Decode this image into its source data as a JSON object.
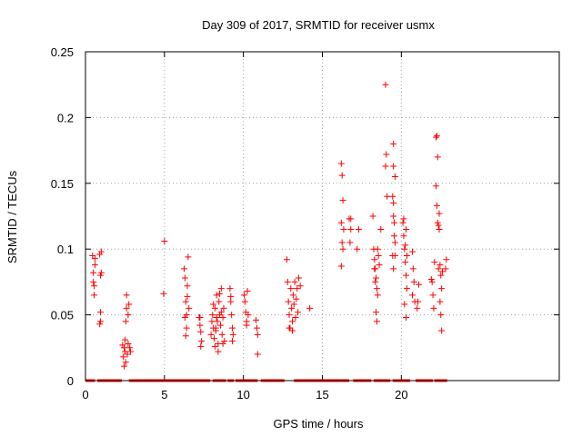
{
  "chart_data": {
    "type": "scatter",
    "title": "Day 309 of 2017, SRMTID for receiver usmx",
    "xlabel": "GPS time / hours",
    "ylabel": "SRMTID / TECUs",
    "xlim": [
      0,
      30
    ],
    "ylim": [
      0,
      0.25
    ],
    "x_ticks": [
      0,
      5,
      10,
      15,
      20
    ],
    "x_tick_labels": [
      "0",
      "5",
      "10",
      "15",
      "20"
    ],
    "y_ticks": [
      0,
      0.05,
      0.1,
      0.15,
      0.2,
      0.25
    ],
    "y_tick_labels": [
      "0",
      "0.05",
      "0.1",
      "0.15",
      "0.2",
      "0.25"
    ],
    "grid": true,
    "marker": "+",
    "series": [
      {
        "name": "SRMTID",
        "color": "#ff0000",
        "points": [
          [
            0.45,
            0.095
          ],
          [
            0.5,
            0.082
          ],
          [
            0.5,
            0.075
          ],
          [
            0.55,
            0.065
          ],
          [
            0.6,
            0.088
          ],
          [
            0.6,
            0.093
          ],
          [
            0.55,
            0.072
          ],
          [
            0.9,
            0.096
          ],
          [
            0.95,
            0.08
          ],
          [
            1.0,
            0.098
          ],
          [
            0.95,
            0.052
          ],
          [
            0.9,
            0.043
          ],
          [
            1.0,
            0.082
          ],
          [
            0.95,
            0.045
          ],
          [
            2.35,
            0.027
          ],
          [
            2.4,
            0.018
          ],
          [
            2.45,
            0.011
          ],
          [
            2.5,
            0.022
          ],
          [
            2.5,
            0.031
          ],
          [
            2.55,
            0.045
          ],
          [
            2.6,
            0.055
          ],
          [
            2.6,
            0.065
          ],
          [
            2.65,
            0.02
          ],
          [
            2.7,
            0.028
          ],
          [
            2.55,
            0.014
          ],
          [
            2.45,
            0.025
          ],
          [
            2.75,
            0.058
          ],
          [
            2.8,
            0.025
          ],
          [
            2.85,
            0.022
          ],
          [
            2.7,
            0.05
          ],
          [
            5.0,
            0.106
          ],
          [
            4.95,
            0.066
          ],
          [
            6.25,
            0.085
          ],
          [
            6.3,
            0.078
          ],
          [
            6.35,
            0.06
          ],
          [
            6.4,
            0.05
          ],
          [
            6.45,
            0.072
          ],
          [
            6.5,
            0.094
          ],
          [
            6.35,
            0.034
          ],
          [
            6.4,
            0.04
          ],
          [
            6.55,
            0.055
          ],
          [
            6.45,
            0.064
          ],
          [
            6.3,
            0.048
          ],
          [
            7.2,
            0.048
          ],
          [
            7.25,
            0.042
          ],
          [
            7.3,
            0.037
          ],
          [
            7.35,
            0.03
          ],
          [
            7.3,
            0.026
          ],
          [
            7.25,
            0.048
          ],
          [
            7.95,
            0.035
          ],
          [
            8.0,
            0.045
          ],
          [
            8.05,
            0.05
          ],
          [
            8.1,
            0.04
          ],
          [
            8.15,
            0.032
          ],
          [
            8.2,
            0.055
          ],
          [
            8.25,
            0.038
          ],
          [
            8.3,
            0.065
          ],
          [
            8.35,
            0.045
          ],
          [
            8.4,
            0.028
          ],
          [
            8.45,
            0.06
          ],
          [
            8.5,
            0.05
          ],
          [
            8.55,
            0.042
          ],
          [
            8.6,
            0.07
          ],
          [
            8.65,
            0.035
          ],
          [
            8.7,
            0.048
          ],
          [
            8.75,
            0.055
          ],
          [
            8.8,
            0.03
          ],
          [
            8.2,
            0.026
          ],
          [
            8.4,
            0.022
          ],
          [
            8.5,
            0.066
          ],
          [
            8.3,
            0.048
          ],
          [
            8.6,
            0.052
          ],
          [
            8.7,
            0.028
          ],
          [
            8.1,
            0.058
          ],
          [
            8.25,
            0.04
          ],
          [
            9.15,
            0.07
          ],
          [
            9.2,
            0.06
          ],
          [
            9.25,
            0.05
          ],
          [
            9.3,
            0.04
          ],
          [
            9.35,
            0.035
          ],
          [
            9.3,
            0.03
          ],
          [
            9.2,
            0.064
          ],
          [
            10.05,
            0.065
          ],
          [
            10.1,
            0.06
          ],
          [
            10.15,
            0.052
          ],
          [
            10.2,
            0.045
          ],
          [
            10.25,
            0.068
          ],
          [
            10.3,
            0.05
          ],
          [
            10.2,
            0.042
          ],
          [
            10.8,
            0.046
          ],
          [
            10.85,
            0.04
          ],
          [
            10.9,
            0.035
          ],
          [
            10.9,
            0.02
          ],
          [
            12.75,
            0.092
          ],
          [
            12.8,
            0.075
          ],
          [
            12.85,
            0.06
          ],
          [
            12.9,
            0.05
          ],
          [
            12.95,
            0.04
          ],
          [
            13.0,
            0.07
          ],
          [
            13.05,
            0.055
          ],
          [
            13.1,
            0.045
          ],
          [
            13.15,
            0.065
          ],
          [
            13.2,
            0.058
          ],
          [
            13.25,
            0.075
          ],
          [
            13.3,
            0.048
          ],
          [
            13.35,
            0.062
          ],
          [
            13.4,
            0.07
          ],
          [
            13.5,
            0.078
          ],
          [
            13.45,
            0.052
          ],
          [
            13.1,
            0.038
          ],
          [
            12.9,
            0.04
          ],
          [
            13.6,
            0.072
          ],
          [
            14.2,
            0.055
          ],
          [
            16.2,
            0.165
          ],
          [
            16.25,
            0.156
          ],
          [
            16.3,
            0.137
          ],
          [
            16.2,
            0.12
          ],
          [
            16.25,
            0.105
          ],
          [
            16.3,
            0.1
          ],
          [
            16.2,
            0.087
          ],
          [
            16.35,
            0.115
          ],
          [
            16.7,
            0.123
          ],
          [
            16.8,
            0.123
          ],
          [
            16.75,
            0.105
          ],
          [
            16.8,
            0.115
          ],
          [
            17.2,
            0.1
          ],
          [
            17.3,
            0.115
          ],
          [
            18.2,
            0.125
          ],
          [
            18.25,
            0.1
          ],
          [
            18.3,
            0.092
          ],
          [
            18.35,
            0.085
          ],
          [
            18.4,
            0.078
          ],
          [
            18.45,
            0.07
          ],
          [
            18.5,
            0.065
          ],
          [
            18.4,
            0.052
          ],
          [
            18.45,
            0.045
          ],
          [
            18.3,
            0.085
          ],
          [
            18.5,
            0.1
          ],
          [
            18.55,
            0.095
          ],
          [
            18.6,
            0.088
          ],
          [
            18.35,
            0.075
          ],
          [
            18.7,
            0.115
          ],
          [
            19.0,
            0.225
          ],
          [
            19.0,
            0.163
          ],
          [
            19.05,
            0.172
          ],
          [
            19.1,
            0.14
          ],
          [
            19.5,
            0.18
          ],
          [
            19.5,
            0.163
          ],
          [
            19.45,
            0.14
          ],
          [
            19.5,
            0.125
          ],
          [
            19.55,
            0.11
          ],
          [
            19.6,
            0.095
          ],
          [
            19.5,
            0.085
          ],
          [
            19.55,
            0.12
          ],
          [
            19.6,
            0.155
          ],
          [
            19.45,
            0.095
          ],
          [
            19.6,
            0.105
          ],
          [
            19.5,
            0.135
          ],
          [
            20.1,
            0.12
          ],
          [
            20.15,
            0.11
          ],
          [
            20.2,
            0.1
          ],
          [
            20.25,
            0.09
          ],
          [
            20.3,
            0.08
          ],
          [
            20.35,
            0.07
          ],
          [
            20.2,
            0.058
          ],
          [
            20.3,
            0.048
          ],
          [
            20.25,
            0.103
          ],
          [
            20.3,
            0.115
          ],
          [
            20.15,
            0.123
          ],
          [
            20.35,
            0.095
          ],
          [
            20.7,
            0.098
          ],
          [
            20.75,
            0.085
          ],
          [
            20.8,
            0.075
          ],
          [
            20.85,
            0.06
          ],
          [
            20.7,
            0.065
          ],
          [
            21.0,
            0.055
          ],
          [
            21.05,
            0.06
          ],
          [
            21.1,
            0.073
          ],
          [
            21.9,
            0.077
          ],
          [
            21.95,
            0.075
          ],
          [
            22.0,
            0.065
          ],
          [
            22.05,
            0.055
          ],
          [
            22.1,
            0.09
          ],
          [
            22.2,
            0.185
          ],
          [
            22.25,
            0.186
          ],
          [
            22.3,
            0.17
          ],
          [
            22.2,
            0.148
          ],
          [
            22.25,
            0.133
          ],
          [
            22.3,
            0.12
          ],
          [
            22.35,
            0.118
          ],
          [
            22.4,
            0.127
          ],
          [
            22.45,
            0.088
          ],
          [
            22.5,
            0.05
          ],
          [
            22.55,
            0.038
          ],
          [
            22.35,
            0.085
          ],
          [
            22.5,
            0.08
          ],
          [
            22.4,
            0.115
          ],
          [
            22.55,
            0.07
          ],
          [
            22.6,
            0.083
          ],
          [
            22.45,
            0.06
          ],
          [
            22.8,
            0.085
          ],
          [
            22.85,
            0.092
          ]
        ],
        "baseline_segments": [
          [
            0.0,
            0.6
          ],
          [
            0.75,
            2.3
          ],
          [
            2.75,
            7.9
          ],
          [
            8.05,
            8.9
          ],
          [
            9.0,
            9.4
          ],
          [
            9.5,
            10.9
          ],
          [
            11.1,
            12.6
          ],
          [
            13.2,
            16.7
          ],
          [
            16.95,
            18.1
          ],
          [
            18.25,
            19.3
          ],
          [
            19.45,
            20.55
          ],
          [
            20.9,
            22.0
          ],
          [
            22.1,
            22.9
          ]
        ]
      }
    ]
  }
}
